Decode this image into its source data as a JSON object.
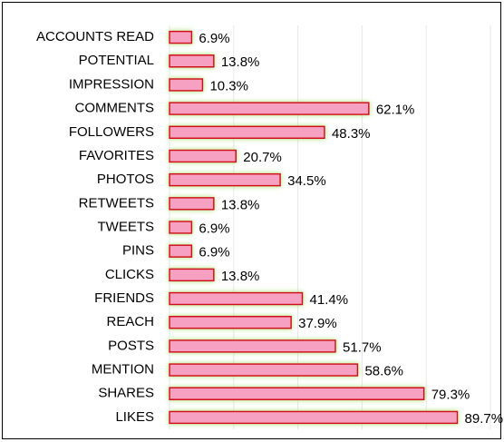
{
  "chart_data": {
    "type": "bar",
    "orientation": "horizontal",
    "categories": [
      "ACCOUNTS READ",
      "POTENTIAL",
      "IMPRESSION",
      "COMMENTS",
      "FOLLOWERS",
      "FAVORITES",
      "PHOTOS",
      "RETWEETS",
      "TWEETS",
      "PINS",
      "CLICKS",
      "FRIENDS",
      "REACH",
      "POSTS",
      "MENTION",
      "SHARES",
      "LIKES"
    ],
    "values": [
      6.9,
      13.8,
      10.3,
      62.1,
      48.3,
      20.7,
      34.5,
      13.8,
      6.9,
      6.9,
      13.8,
      41.4,
      37.9,
      51.7,
      58.6,
      79.3,
      89.7
    ],
    "value_labels": [
      "6.9%",
      "13.8%",
      "10.3%",
      "62.1%",
      "48.3%",
      "20.7%",
      "34.5%",
      "13.8%",
      "6.9%",
      "6.9%",
      "13.8%",
      "41.4%",
      "37.9%",
      "51.7%",
      "58.6%",
      "79.3%",
      "89.7%"
    ],
    "color": "#f7a1c2",
    "edge_color": "#d0101a",
    "glow_color": "#a8e070",
    "xlim": [
      0,
      100
    ],
    "xticks": [
      0,
      20,
      40,
      60,
      80,
      100
    ],
    "grid": true
  }
}
